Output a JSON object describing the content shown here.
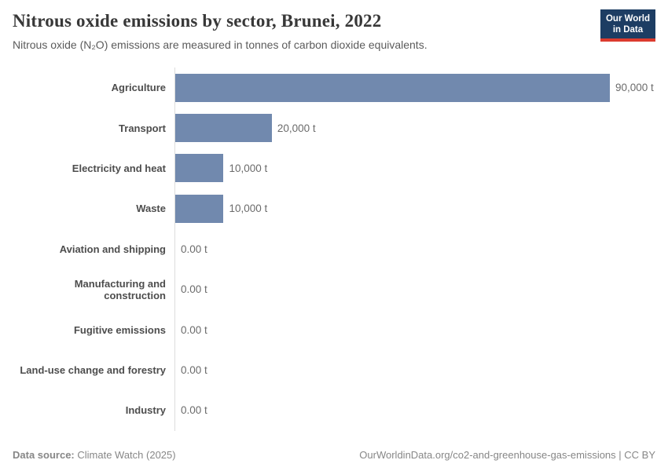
{
  "header": {
    "title": "Nitrous oxide emissions by sector, Brunei, 2022",
    "subtitle": "Nitrous oxide (N₂O) emissions are measured in tonnes of carbon dioxide equivalents.",
    "logo_line1": "Our World",
    "logo_line2": "in Data"
  },
  "chart_data": {
    "type": "bar",
    "orientation": "horizontal",
    "title": "Nitrous oxide emissions by sector, Brunei, 2022",
    "subtitle": "Nitrous oxide (N₂O) emissions are measured in tonnes of carbon dioxide equivalents.",
    "unit": "tonnes of CO₂ equivalents",
    "categories": [
      "Agriculture",
      "Transport",
      "Electricity and heat",
      "Waste",
      "Aviation and shipping",
      "Manufacturing and construction",
      "Fugitive emissions",
      "Land-use change and forestry",
      "Industry"
    ],
    "values": [
      90000,
      20000,
      10000,
      10000,
      0,
      0,
      0,
      0,
      0
    ],
    "value_labels": [
      "90,000 t",
      "20,000 t",
      "10,000 t",
      "10,000 t",
      "0.00 t",
      "0.00 t",
      "0.00 t",
      "0.00 t",
      "0.00 t"
    ],
    "xlim": [
      0,
      90000
    ],
    "grid": false,
    "legend": "none",
    "bar_color": "#7189ae"
  },
  "footer": {
    "source_label": "Data source:",
    "source_value": " Climate Watch (2025)",
    "right_text": "OurWorldinData.org/co2-and-greenhouse-gas-emissions | CC BY"
  }
}
